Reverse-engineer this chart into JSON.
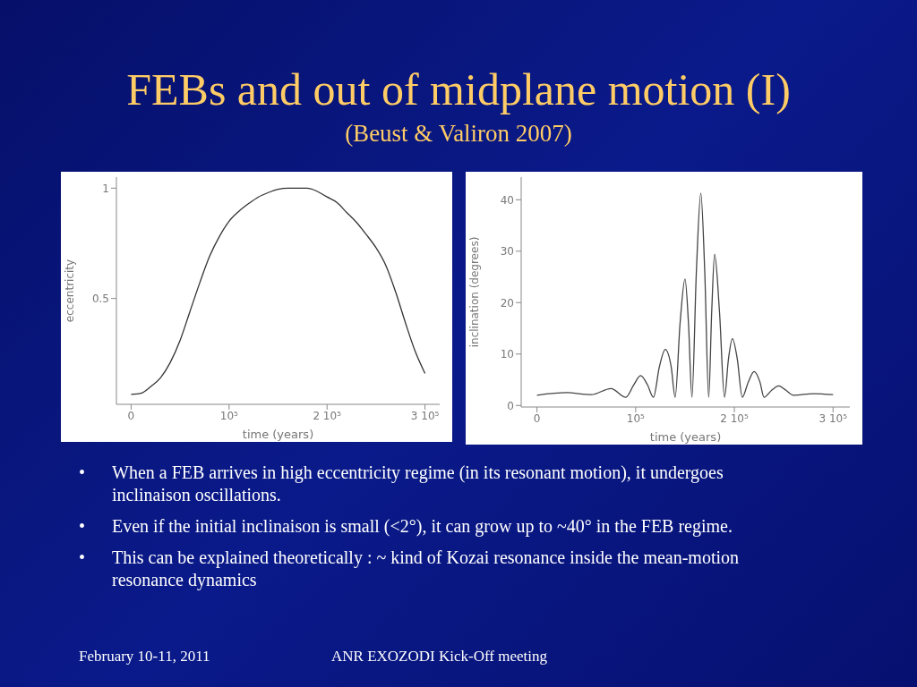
{
  "chart_data": [
    {
      "type": "other",
      "title": "FEBs and out of midplane motion (I)",
      "subtitle": "(Beust & Valiron 2007)"
    },
    {
      "type": "line",
      "xlabel": "time (years)",
      "ylabel": "eccentricity",
      "xlim": [
        -15000,
        315000
      ],
      "ylim": [
        0.02,
        1.05
      ],
      "xticks": [
        0,
        {
          "value": 100000,
          "label": "10⁵"
        },
        {
          "value": 200000,
          "label": "2 10⁵"
        },
        {
          "value": 300000,
          "label": "3 10⁵"
        }
      ],
      "yticks": [
        0.5,
        1
      ],
      "marker": "none",
      "series": [
        {
          "color": "#333333",
          "x": [
            0,
            10000,
            20000,
            30000,
            40000,
            50000,
            60000,
            70000,
            80000,
            90000,
            100000,
            110000,
            120000,
            130000,
            140000,
            150000,
            160000,
            180000,
            200000,
            210000,
            220000,
            230000,
            240000,
            250000,
            260000,
            270000,
            280000,
            290000,
            300000
          ],
          "values": [
            0.065,
            0.07,
            0.1,
            0.14,
            0.21,
            0.31,
            0.44,
            0.57,
            0.69,
            0.78,
            0.85,
            0.895,
            0.93,
            0.96,
            0.98,
            0.995,
            1.0,
            1.0,
            0.96,
            0.935,
            0.89,
            0.845,
            0.79,
            0.73,
            0.65,
            0.53,
            0.39,
            0.26,
            0.16
          ]
        }
      ]
    },
    {
      "type": "line",
      "xlabel": "time (years)",
      "ylabel": "inclination (degrees)",
      "xlim": [
        -16000,
        317000
      ],
      "ylim": [
        -0.3,
        44.4
      ],
      "xticks": [
        0,
        {
          "value": 100000,
          "label": "10⁵"
        },
        {
          "value": 200000,
          "label": "2 10⁵"
        },
        {
          "value": 300000,
          "label": "3 10⁵"
        }
      ],
      "yticks": [
        0,
        10,
        20,
        30,
        40
      ],
      "marker": "none",
      "series": [
        {
          "color": "#444444",
          "x": [
            0,
            30000,
            55000,
            75000,
            90000,
            98000,
            105000,
            112000,
            118000,
            124000,
            130000,
            136000,
            140000,
            145000,
            150000,
            153500,
            157000,
            161500,
            166000,
            170000,
            174000,
            177000,
            180000,
            185000,
            190000,
            194000,
            198000,
            203000,
            208000,
            214000,
            220000,
            226000,
            230000,
            238000,
            245000,
            252000,
            260000,
            280000,
            300000
          ],
          "values": [
            2.0,
            2.5,
            2.1,
            3.3,
            1.6,
            4.0,
            5.8,
            4.0,
            1.6,
            7.5,
            10.9,
            7.5,
            1.6,
            16,
            24.6,
            16,
            1.6,
            26,
            41.3,
            26,
            1.6,
            18,
            29.4,
            18,
            1.6,
            9,
            13.0,
            9,
            1.6,
            4.5,
            6.6,
            4.5,
            1.6,
            3.0,
            3.8,
            3.0,
            2.0,
            2.3,
            2.1
          ]
        }
      ]
    },
    {
      "type": "other",
      "annotations": [
        "• When a FEB arrives in high eccentricity regime (in its resonant motion), it undergoes  inclinaison oscillations.",
        "• Even if the initial inclinaison is small (<2°), it can grow up to ~40° in the FEB regime.",
        "• This can be explained theoretically : ~ kind of Kozai resonance inside the mean-motion resonance dynamics"
      ]
    },
    {
      "type": "other",
      "annotations": [
        "February 10-11, 2011",
        "ANR EXOZODI Kick-Off meeting"
      ]
    }
  ]
}
